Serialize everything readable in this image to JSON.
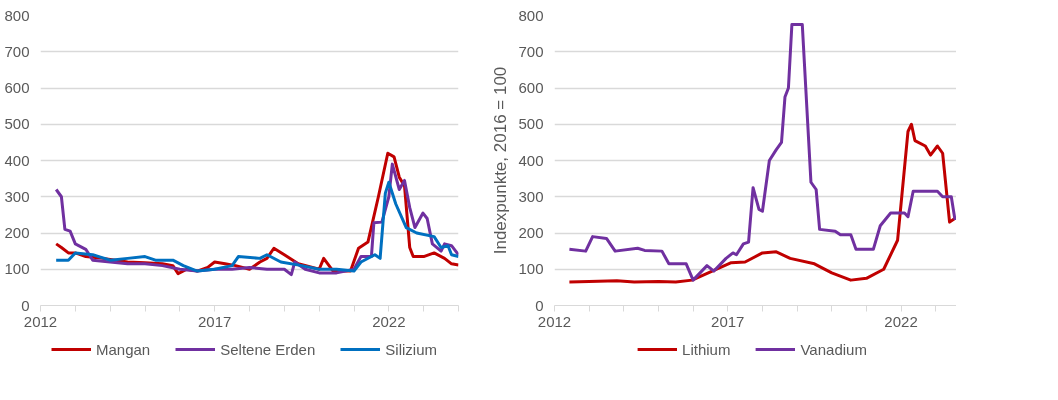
{
  "chart_data": [
    {
      "type": "line",
      "xlim": [
        2012,
        2024
      ],
      "ylim": [
        0,
        800
      ],
      "yticks": [
        0,
        100,
        200,
        300,
        400,
        500,
        600,
        700,
        800
      ],
      "xticks": [
        2012,
        {
          "value": 2013,
          "label": null
        },
        {
          "value": 2014,
          "label": null
        },
        {
          "value": 2015,
          "label": null
        },
        {
          "value": 2016,
          "label": null
        },
        2017,
        {
          "value": 2018,
          "label": null
        },
        {
          "value": 2019,
          "label": null
        },
        {
          "value": 2020,
          "label": null
        },
        {
          "value": 2021,
          "label": null
        },
        2022,
        {
          "value": 2023,
          "label": null
        },
        {
          "value": 2024,
          "label": null
        }
      ],
      "grid": "y",
      "legend": "bottom",
      "marker": "none",
      "line_style": "solid",
      "series": [
        {
          "name": "Mangan",
          "color": "#c00000",
          "x": [
            2012.45,
            2012.6,
            2012.8,
            2013.0,
            2013.3,
            2013.8,
            2014.5,
            2015.0,
            2015.5,
            2015.8,
            2015.95,
            2016.2,
            2016.5,
            2016.8,
            2017.0,
            2017.3,
            2017.6,
            2018.0,
            2018.3,
            2018.5,
            2018.7,
            2019.0,
            2019.4,
            2020.0,
            2020.13,
            2020.4,
            2020.9,
            2021.13,
            2021.4,
            2021.7,
            2021.97,
            2022.15,
            2022.3,
            2022.45,
            2022.6,
            2022.7,
            2023.0,
            2023.3,
            2023.6,
            2023.8,
            2024.0
          ],
          "values": [
            170,
            160,
            145,
            145,
            135,
            130,
            120,
            118,
            115,
            110,
            88,
            100,
            95,
            105,
            120,
            115,
            110,
            100,
            120,
            130,
            158,
            140,
            115,
            100,
            130,
            95,
            95,
            158,
            175,
            300,
            420,
            410,
            354,
            330,
            160,
            135,
            135,
            145,
            130,
            115,
            112
          ]
        },
        {
          "name": "Seltene Erden",
          "color": "#7030a0",
          "x": [
            2012.45,
            2012.6,
            2012.7,
            2012.85,
            2013.0,
            2013.3,
            2013.5,
            2014.0,
            2014.5,
            2015.0,
            2015.5,
            2016.0,
            2016.5,
            2017.0,
            2017.5,
            2018.0,
            2018.5,
            2019.0,
            2019.2,
            2019.3,
            2019.6,
            2020.0,
            2020.5,
            2021.0,
            2021.2,
            2021.5,
            2021.57,
            2021.8,
            2022.0,
            2022.1,
            2022.3,
            2022.45,
            2022.6,
            2022.75,
            2022.98,
            2023.1,
            2023.25,
            2023.5,
            2023.6,
            2023.8,
            2024.0
          ],
          "values": [
            320,
            300,
            210,
            205,
            170,
            155,
            125,
            120,
            115,
            115,
            110,
            100,
            95,
            100,
            100,
            105,
            100,
            100,
            85,
            120,
            100,
            90,
            90,
            100,
            135,
            135,
            228,
            230,
            300,
            390,
            320,
            345,
            270,
            215,
            255,
            240,
            170,
            150,
            170,
            165,
            140
          ]
        },
        {
          "name": "Silizium",
          "color": "#0070c0",
          "x": [
            2012.45,
            2012.8,
            2013.0,
            2013.5,
            2014.0,
            2014.5,
            2015.0,
            2015.3,
            2015.8,
            2016.1,
            2016.5,
            2017.0,
            2017.5,
            2017.68,
            2018.3,
            2018.5,
            2018.9,
            2019.5,
            2020.0,
            2020.5,
            2021.0,
            2021.2,
            2021.6,
            2021.75,
            2021.9,
            2022.0,
            2022.2,
            2022.5,
            2022.8,
            2023.3,
            2023.5,
            2023.7,
            2023.8,
            2024.0
          ],
          "values": [
            125,
            125,
            145,
            140,
            125,
            130,
            135,
            125,
            125,
            110,
            95,
            100,
            110,
            135,
            130,
            140,
            120,
            110,
            100,
            100,
            95,
            120,
            140,
            130,
            310,
            340,
            280,
            215,
            200,
            190,
            160,
            165,
            140,
            135
          ]
        }
      ]
    },
    {
      "type": "line",
      "ylabel": "Indexpunkte, 2016 = 100",
      "xlim": [
        2012,
        2023.6
      ],
      "ylim": [
        0,
        800
      ],
      "yticks": [
        0,
        100,
        200,
        300,
        400,
        500,
        600,
        700,
        800
      ],
      "xticks": [
        2012,
        {
          "value": 2013,
          "label": null
        },
        {
          "value": 2014,
          "label": null
        },
        {
          "value": 2015,
          "label": null
        },
        {
          "value": 2016,
          "label": null
        },
        2017,
        {
          "value": 2018,
          "label": null
        },
        {
          "value": 2019,
          "label": null
        },
        {
          "value": 2020,
          "label": null
        },
        {
          "value": 2021,
          "label": null
        },
        2022,
        {
          "value": 2023,
          "label": null
        }
      ],
      "grid": "y",
      "legend": "bottom",
      "marker": "none",
      "line_style": "solid",
      "series": [
        {
          "name": "Lithium",
          "color": "#c00000",
          "x": [
            2012.43,
            2013.0,
            2013.8,
            2014.3,
            2015.0,
            2015.5,
            2015.97,
            2016.55,
            2017.1,
            2017.5,
            2018.0,
            2018.4,
            2018.8,
            2019.5,
            2020.0,
            2020.55,
            2021.0,
            2021.5,
            2021.9,
            2022.2,
            2022.3,
            2022.4,
            2022.7,
            2022.85,
            2023.05,
            2023.2,
            2023.4,
            2023.55
          ],
          "values": [
            65,
            66,
            68,
            65,
            66,
            65,
            70,
            95,
            118,
            120,
            145,
            148,
            130,
            115,
            90,
            70,
            75,
            100,
            180,
            480,
            500,
            455,
            440,
            415,
            440,
            420,
            230,
            240
          ]
        },
        {
          "name": "Vanadium",
          "color": "#7030a0",
          "x": [
            2012.43,
            2012.9,
            2013.1,
            2013.5,
            2013.75,
            2014.4,
            2014.6,
            2015.1,
            2015.3,
            2015.8,
            2016.0,
            2016.2,
            2016.4,
            2016.6,
            2016.95,
            2017.15,
            2017.25,
            2017.45,
            2017.6,
            2017.73,
            2017.9,
            2018.0,
            2018.2,
            2018.4,
            2018.55,
            2018.65,
            2018.75,
            2018.85,
            2019.15,
            2019.4,
            2019.55,
            2019.65,
            2020.1,
            2020.25,
            2020.55,
            2020.7,
            2021.2,
            2021.4,
            2021.7,
            2022.1,
            2022.2,
            2022.35,
            2023.05,
            2023.2,
            2023.45,
            2023.55,
            2023.6
          ],
          "values": [
            155,
            150,
            190,
            185,
            150,
            158,
            152,
            150,
            115,
            115,
            70,
            90,
            110,
            95,
            130,
            145,
            140,
            170,
            175,
            325,
            265,
            260,
            400,
            430,
            450,
            575,
            600,
            775,
            775,
            340,
            320,
            210,
            205,
            195,
            195,
            155,
            155,
            220,
            255,
            255,
            245,
            315,
            315,
            300,
            300,
            240,
            240
          ]
        }
      ]
    }
  ]
}
